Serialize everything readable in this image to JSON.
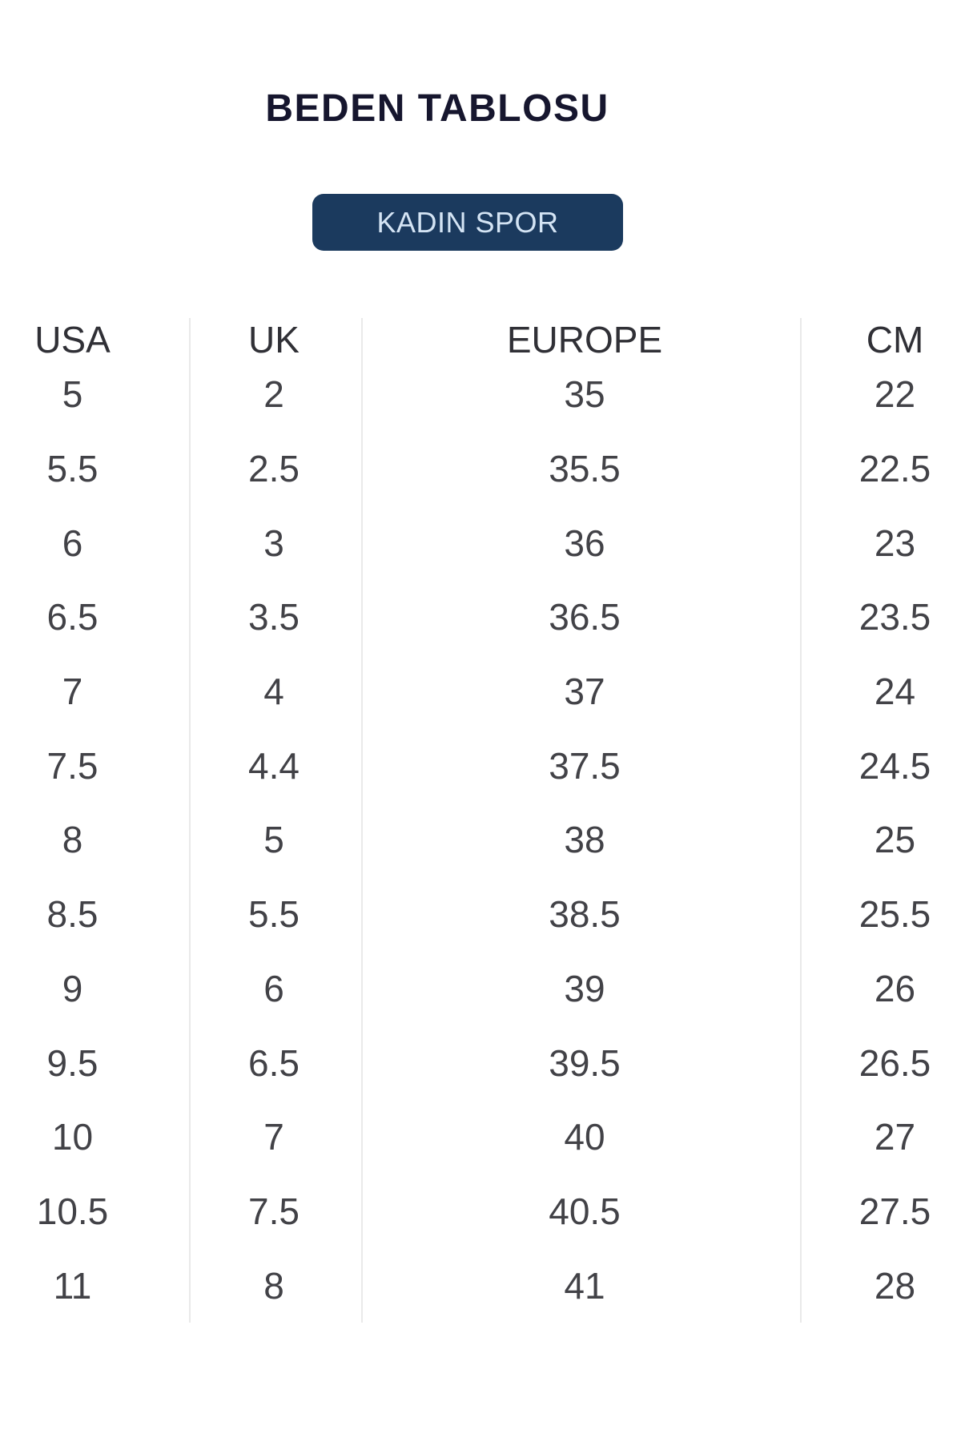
{
  "page": {
    "title": "BEDEN TABLOSU"
  },
  "category_button": {
    "label": "KADIN SPOR"
  },
  "size_table": {
    "columns": [
      "USA",
      "UK",
      "EUROPE",
      "CM"
    ],
    "rows": [
      [
        "5",
        "2",
        "35",
        "22"
      ],
      [
        "5.5",
        "2.5",
        "35.5",
        "22.5"
      ],
      [
        "6",
        "3",
        "36",
        "23"
      ],
      [
        "6.5",
        "3.5",
        "36.5",
        "23.5"
      ],
      [
        "7",
        "4",
        "37",
        "24"
      ],
      [
        "7.5",
        "4.4",
        "37.5",
        "24.5"
      ],
      [
        "8",
        "5",
        "38",
        "25"
      ],
      [
        "8.5",
        "5.5",
        "38.5",
        "25.5"
      ],
      [
        "9",
        "6",
        "39",
        "26"
      ],
      [
        "9.5",
        "6.5",
        "39.5",
        "26.5"
      ],
      [
        "10",
        "7",
        "40",
        "27"
      ],
      [
        "10.5",
        "7.5",
        "40.5",
        "27.5"
      ],
      [
        "11",
        "8",
        "41",
        "28"
      ]
    ]
  },
  "colors": {
    "title": "#16162e",
    "button_bg": "#1b3a5e",
    "button_text": "#d4e4f4",
    "divider": "#e9e9e9"
  }
}
